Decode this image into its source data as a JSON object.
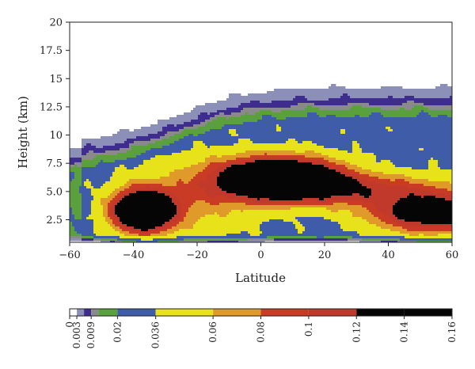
{
  "chart_data": {
    "type": "heatmap",
    "title": "",
    "xlabel": "Latitude",
    "ylabel": "Height (km)",
    "xlim": [
      -60,
      60
    ],
    "ylim": [
      0.5,
      20
    ],
    "x_ticks": [
      -60,
      -40,
      -20,
      0,
      20,
      40,
      60
    ],
    "x_tick_labels": [
      "−60",
      "−40",
      "−20",
      "0",
      "20",
      "40",
      "60"
    ],
    "y_ticks": [
      2.5,
      5.0,
      7.5,
      10,
      12.5,
      15,
      17.5,
      20
    ],
    "y_tick_labels": [
      "2.5",
      "5.0",
      "7.5",
      "10",
      "12.5",
      "15",
      "17.5",
      "20"
    ],
    "colorbar": {
      "levels": [
        0,
        0.003,
        0.006,
        0.009,
        0.012,
        0.02,
        0.036,
        0.06,
        0.08,
        0.1,
        0.12,
        0.14,
        0.16
      ],
      "tick_values": [
        0,
        0.003,
        0.009,
        0.02,
        0.036,
        0.06,
        0.08,
        0.1,
        0.12,
        0.14,
        0.16
      ],
      "tick_labels": [
        "0",
        "0.003",
        "0.009",
        "0.02",
        "0.036",
        "0.06",
        "0.08",
        "0.1",
        "0.12",
        "0.14",
        "0.16"
      ],
      "colors": [
        "#ffffff",
        "#8c8fb8",
        "#3f2c8f",
        "#8a8a8a",
        "#5aa03c",
        "#3e5ca8",
        "#e8e21a",
        "#e09a2a",
        "#c93b24",
        "#c0392b",
        "#050505",
        "#050505"
      ]
    },
    "features": [
      {
        "name": "southern-mid-level-maximum",
        "lat": -37,
        "height_km": 3.3,
        "peak_value": 0.16
      },
      {
        "name": "tropical-maximum",
        "lat": 6,
        "height_km": 6.2,
        "peak_value": 0.16
      },
      {
        "name": "northern-low-level-band",
        "lat": 55,
        "height_km": 3.0,
        "peak_value": 0.12
      }
    ]
  }
}
